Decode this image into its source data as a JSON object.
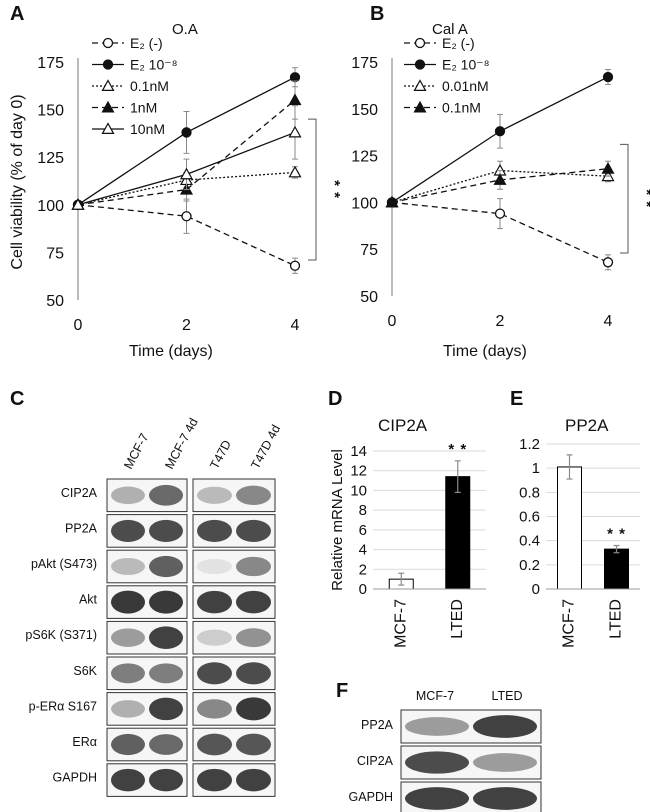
{
  "colors": {
    "line": "#111111",
    "grid": "#d9d9d9",
    "err": "#8a8a8a",
    "blot_bg": "#f6f6f6",
    "band": "#2e2e2e"
  },
  "panel_labels": {
    "a": "A",
    "b": "B",
    "c": "C",
    "d": "D",
    "e": "E",
    "f": "F"
  },
  "chart_data": [
    {
      "id": "A",
      "type": "line",
      "title": "O.A",
      "xlabel": "Time    (days)",
      "ylabel": "Cell viability (% of day 0)",
      "x": [
        0,
        2,
        4
      ],
      "xticks": [
        "0",
        "2",
        "4"
      ],
      "ylim": [
        50,
        175
      ],
      "yticks": [
        50,
        75,
        100,
        125,
        150,
        175
      ],
      "significance": "* *",
      "series": [
        {
          "name": "E₂ (-)",
          "style": "dashed",
          "marker": "circle-open",
          "values": [
            100,
            94,
            68
          ],
          "err": [
            0,
            9,
            4
          ]
        },
        {
          "name": "E₂ 10⁻⁸",
          "style": "solid",
          "marker": "circle-filled",
          "values": [
            100,
            138,
            167
          ],
          "err": [
            0,
            11,
            5
          ]
        },
        {
          "name": "0.1nM",
          "style": "dotted",
          "marker": "triangle-open",
          "values": [
            100,
            113,
            117
          ],
          "err": [
            0,
            4,
            3
          ]
        },
        {
          "name": "1nM",
          "style": "dashed",
          "marker": "triangle-filled",
          "values": [
            100,
            108,
            155
          ],
          "err": [
            0,
            6,
            10
          ]
        },
        {
          "name": "10nM",
          "style": "solid",
          "marker": "triangle-open",
          "values": [
            100,
            116,
            138
          ],
          "err": [
            0,
            8,
            14
          ]
        }
      ]
    },
    {
      "id": "B",
      "type": "line",
      "title": "Cal A",
      "xlabel": "Time    (days)",
      "ylabel": "",
      "x": [
        0,
        2,
        4
      ],
      "xticks": [
        "0",
        "2",
        "4"
      ],
      "ylim": [
        50,
        175
      ],
      "yticks": [
        50,
        75,
        100,
        125,
        150,
        175
      ],
      "significance": "* *",
      "series": [
        {
          "name": "E₂ (-)",
          "style": "dashed",
          "marker": "circle-open",
          "values": [
            100,
            94,
            68
          ],
          "err": [
            0,
            8,
            4
          ]
        },
        {
          "name": "E₂ 10⁻⁸",
          "style": "solid",
          "marker": "circle-filled",
          "values": [
            100,
            138,
            167
          ],
          "err": [
            0,
            9,
            4
          ]
        },
        {
          "name": "0.01nM",
          "style": "dotted",
          "marker": "triangle-open",
          "values": [
            100,
            117,
            114
          ],
          "err": [
            0,
            5,
            3
          ]
        },
        {
          "name": "0.1nM",
          "style": "dashed",
          "marker": "triangle-filled",
          "values": [
            100,
            112,
            118
          ],
          "err": [
            0,
            5,
            4
          ]
        }
      ]
    },
    {
      "id": "D",
      "type": "bar",
      "title": "CIP2A",
      "ylabel": "Relative mRNA Level",
      "categories": [
        "MCF-7",
        "LTED"
      ],
      "values": [
        1,
        11.4
      ],
      "err": [
        0.6,
        1.6
      ],
      "fills": [
        "#ffffff",
        "#000000"
      ],
      "ylim": [
        0,
        14
      ],
      "yticks": [
        "0",
        "2",
        "4",
        "6",
        "8",
        "10",
        "12",
        "14"
      ],
      "significance": "* *"
    },
    {
      "id": "E",
      "type": "bar",
      "title": "PP2A",
      "ylabel": "",
      "categories": [
        "MCF-7",
        "LTED"
      ],
      "values": [
        1.01,
        0.33
      ],
      "err": [
        0.1,
        0.03
      ],
      "fills": [
        "#ffffff",
        "#000000"
      ],
      "ylim": [
        0,
        1.2
      ],
      "yticks": [
        "0",
        "0.2",
        "0.4",
        "0.6",
        "0.8",
        "1",
        "1.2"
      ],
      "significance": "* *"
    }
  ],
  "blot_c": {
    "lanes": [
      "MCF-7",
      "MCF-7 4d",
      "T47D",
      "T47D 4d"
    ],
    "rows": [
      {
        "label": "CIP2A",
        "bands": [
          0.35,
          0.7,
          0.3,
          0.55
        ]
      },
      {
        "label": "PP2A",
        "bands": [
          0.85,
          0.85,
          0.85,
          0.85
        ]
      },
      {
        "label": "pAkt (S473)",
        "bands": [
          0.3,
          0.75,
          0.1,
          0.55
        ]
      },
      {
        "label": "Akt",
        "bands": [
          0.95,
          0.95,
          0.9,
          0.9
        ]
      },
      {
        "label": "pS6K (S371)",
        "bands": [
          0.45,
          0.9,
          0.2,
          0.5
        ]
      },
      {
        "label": "S6K",
        "bands": [
          0.6,
          0.6,
          0.85,
          0.85
        ]
      },
      {
        "label": "p-ERα S167",
        "bands": [
          0.35,
          0.9,
          0.55,
          0.95
        ]
      },
      {
        "label": "ERα",
        "bands": [
          0.75,
          0.7,
          0.8,
          0.8
        ]
      },
      {
        "label": "GAPDH",
        "bands": [
          0.9,
          0.9,
          0.9,
          0.9
        ]
      }
    ]
  },
  "blot_f": {
    "lanes": [
      "MCF-7",
      "LTED"
    ],
    "rows": [
      {
        "label": "PP2A",
        "bands": [
          0.45,
          0.9
        ]
      },
      {
        "label": "CIP2A",
        "bands": [
          0.85,
          0.45
        ]
      },
      {
        "label": "GAPDH",
        "bands": [
          0.9,
          0.9
        ]
      }
    ]
  }
}
